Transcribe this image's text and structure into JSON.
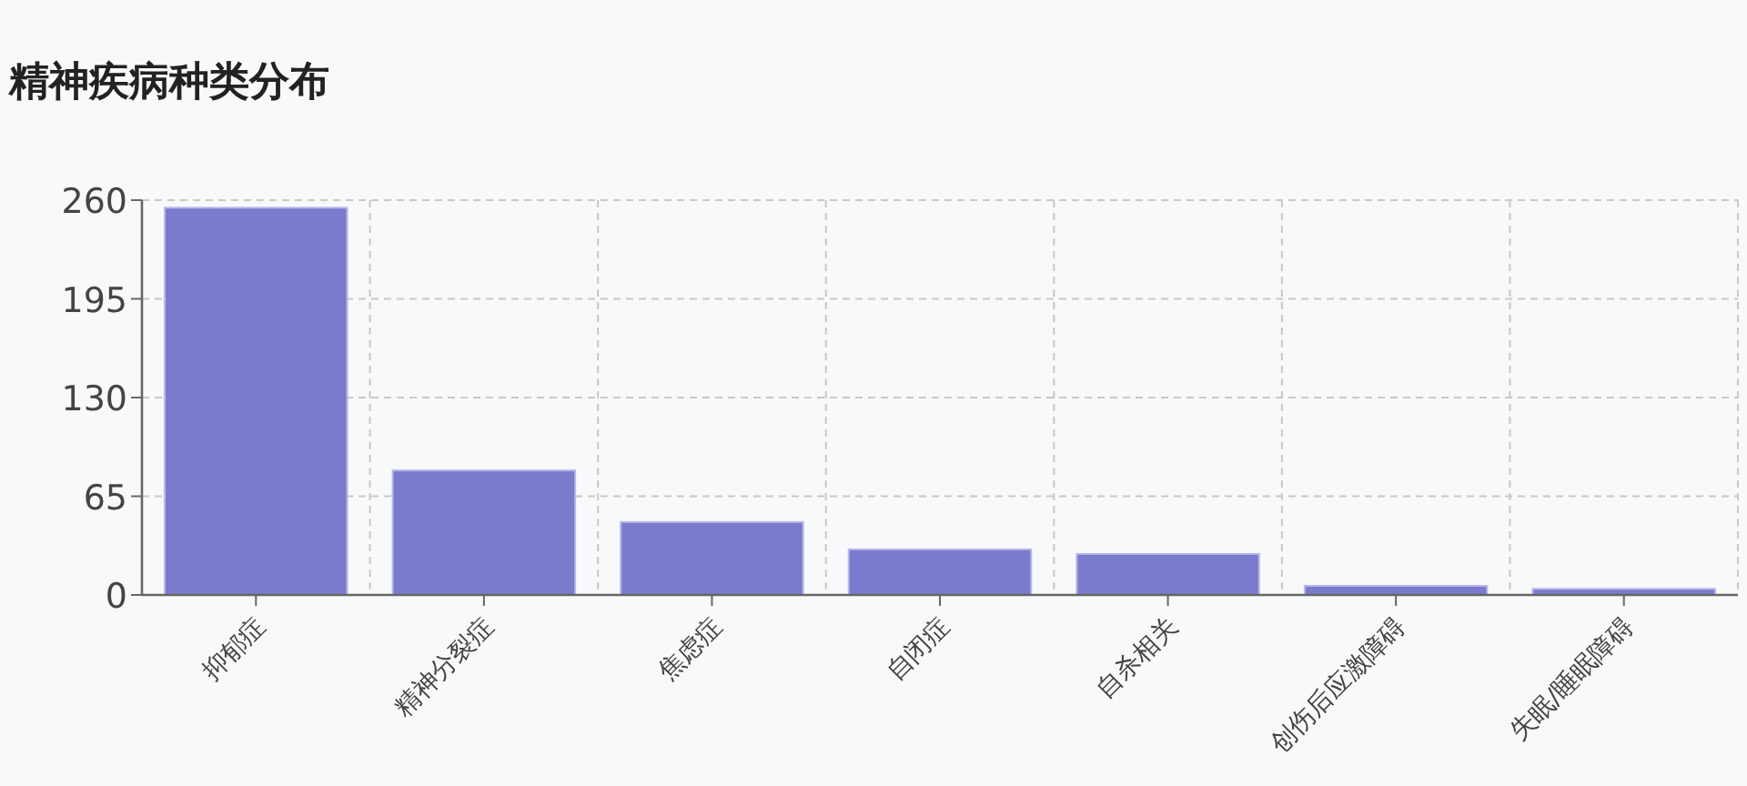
{
  "chart_data": {
    "type": "bar",
    "title": "精神疾病种类分布",
    "categories": [
      "抑郁症",
      "精神分裂症",
      "焦虑症",
      "自闭症",
      "自杀相关",
      "创伤后应激障碍",
      "失眠/睡眠障碍"
    ],
    "values": [
      255,
      82,
      48,
      30,
      27,
      6,
      4
    ],
    "color": "#7b7bcd",
    "ylim": [
      0,
      260
    ],
    "yticks": [
      0,
      65,
      130,
      195,
      260
    ],
    "grid": true
  }
}
